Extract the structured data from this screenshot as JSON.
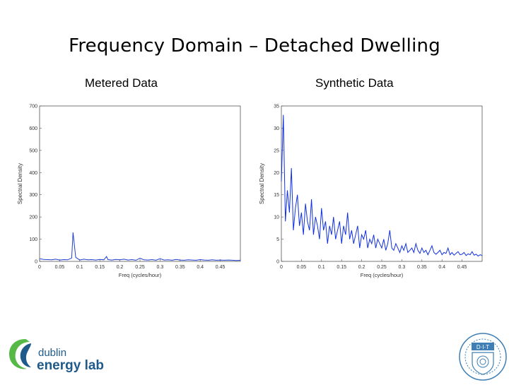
{
  "slide": {
    "title": "Frequency Domain – Detached Dwelling"
  },
  "chart_data": [
    {
      "type": "line",
      "title": "Metered Data",
      "xlabel": "Freq (cycles/hour)",
      "ylabel": "Spectral Density",
      "xlim": [
        0,
        0.5
      ],
      "ylim": [
        0,
        700
      ],
      "x_ticks": [
        "0",
        "0.05",
        "0.1",
        "0.15",
        "0.2",
        "0.25",
        "0.3",
        "0.35",
        "0.4",
        "0.45"
      ],
      "y_ticks": [
        "0",
        "100",
        "200",
        "300",
        "400",
        "500",
        "600",
        "700"
      ],
      "grid": false,
      "series": [
        {
          "color": "#1f3fcf",
          "x": [
            0,
            0.01,
            0.02,
            0.03,
            0.04,
            0.05,
            0.06,
            0.07,
            0.08,
            0.0833,
            0.09,
            0.1,
            0.11,
            0.12,
            0.13,
            0.14,
            0.15,
            0.16,
            0.1667,
            0.17,
            0.18,
            0.19,
            0.2,
            0.21,
            0.22,
            0.23,
            0.24,
            0.25,
            0.26,
            0.27,
            0.28,
            0.29,
            0.3,
            0.31,
            0.32,
            0.33,
            0.34,
            0.35,
            0.36,
            0.37,
            0.38,
            0.39,
            0.4,
            0.41,
            0.42,
            0.43,
            0.44,
            0.45,
            0.46,
            0.47,
            0.48,
            0.49,
            0.5
          ],
          "y": [
            12,
            9,
            8,
            7,
            10,
            6,
            8,
            7,
            15,
            130,
            18,
            6,
            10,
            7,
            8,
            6,
            9,
            7,
            22,
            8,
            6,
            9,
            7,
            10,
            6,
            8,
            5,
            14,
            7,
            6,
            8,
            5,
            12,
            6,
            7,
            5,
            9,
            6,
            5,
            7,
            6,
            5,
            8,
            6,
            5,
            7,
            5,
            6,
            5,
            6,
            5,
            4,
            5
          ]
        }
      ]
    },
    {
      "type": "line",
      "title": "Synthetic Data",
      "xlabel": "Freq (cycles/hour)",
      "ylabel": "Spectral Density",
      "xlim": [
        0,
        0.5
      ],
      "ylim": [
        0,
        35
      ],
      "x_ticks": [
        "0",
        "0.05",
        "0.1",
        "0.15",
        "0.2",
        "0.25",
        "0.3",
        "0.35",
        "0.4",
        "0.45"
      ],
      "y_ticks": [
        "0",
        "5",
        "10",
        "15",
        "20",
        "25",
        "30",
        "35"
      ],
      "grid": false,
      "series": [
        {
          "color": "#1030e0",
          "x": [
            0,
            0.005,
            0.01,
            0.015,
            0.02,
            0.025,
            0.03,
            0.035,
            0.04,
            0.045,
            0.05,
            0.055,
            0.06,
            0.065,
            0.07,
            0.075,
            0.08,
            0.085,
            0.09,
            0.095,
            0.1,
            0.105,
            0.11,
            0.115,
            0.12,
            0.125,
            0.13,
            0.135,
            0.14,
            0.145,
            0.15,
            0.155,
            0.16,
            0.165,
            0.17,
            0.175,
            0.18,
            0.185,
            0.19,
            0.195,
            0.2,
            0.205,
            0.21,
            0.215,
            0.22,
            0.225,
            0.23,
            0.235,
            0.24,
            0.245,
            0.25,
            0.255,
            0.26,
            0.265,
            0.27,
            0.275,
            0.28,
            0.285,
            0.29,
            0.295,
            0.3,
            0.305,
            0.31,
            0.315,
            0.32,
            0.325,
            0.33,
            0.335,
            0.34,
            0.345,
            0.35,
            0.355,
            0.36,
            0.365,
            0.37,
            0.375,
            0.38,
            0.385,
            0.39,
            0.395,
            0.4,
            0.405,
            0.41,
            0.415,
            0.42,
            0.425,
            0.43,
            0.435,
            0.44,
            0.445,
            0.45,
            0.455,
            0.46,
            0.465,
            0.47,
            0.475,
            0.48,
            0.485,
            0.49,
            0.495,
            0.5
          ],
          "y": [
            18,
            33,
            9,
            16,
            11,
            21,
            7,
            12,
            15,
            8,
            11,
            6,
            13,
            9,
            7,
            14,
            6,
            10,
            8,
            5,
            12,
            7,
            9,
            4,
            8,
            6,
            10,
            5,
            7,
            9,
            4,
            8,
            6,
            11,
            5,
            7,
            4,
            6,
            8,
            3,
            6,
            5,
            7,
            3,
            5,
            4,
            6,
            3,
            5,
            4,
            3,
            5,
            2.5,
            4,
            7,
            3,
            2.5,
            4,
            3,
            2,
            3.5,
            2.5,
            4,
            2,
            2.5,
            3,
            2,
            4,
            2.5,
            1.8,
            3,
            2,
            2.5,
            1.5,
            2.5,
            3.5,
            2,
            1.6,
            2,
            2.5,
            1.5,
            2,
            1.8,
            3,
            1.5,
            2,
            1.4,
            1.8,
            2.2,
            1.5,
            1.6,
            2,
            1.3,
            1.7,
            1.5,
            2.2,
            1.4,
            1.6,
            1.2,
            1.5,
            1.3
          ]
        }
      ]
    }
  ],
  "logos": {
    "del_line1": "dublin",
    "del_line2": "energy lab.",
    "dit_text": "D·I·T"
  },
  "colors": {
    "series_blue": "#1030e0",
    "logo_green": "#56b947",
    "logo_blue": "#1f5a8a",
    "dit_blue": "#3f7fb5"
  }
}
